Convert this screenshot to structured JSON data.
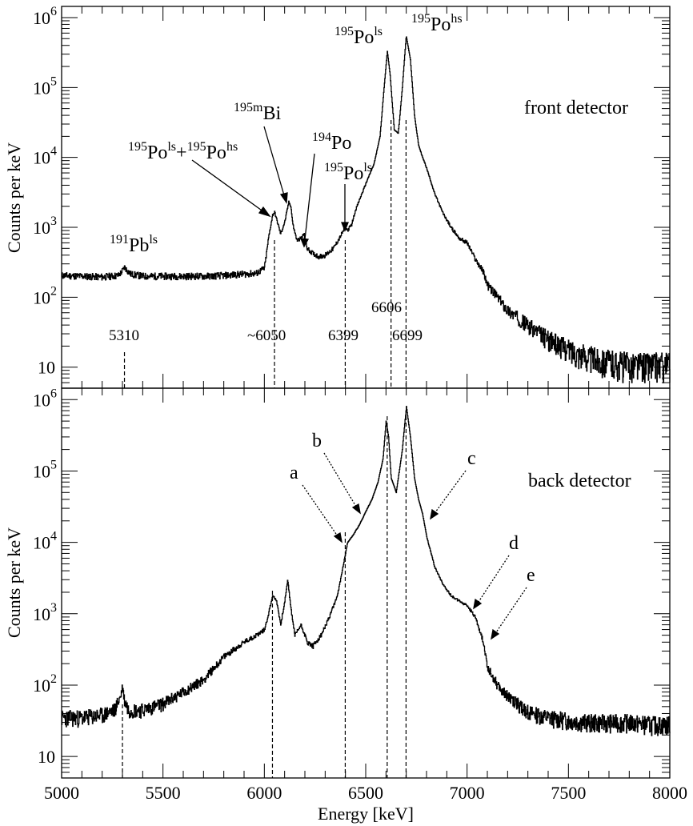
{
  "chart_data": [
    {
      "type": "line",
      "panel": "top",
      "annotation": "front detector",
      "xlabel": "",
      "ylabel": "Counts per keV",
      "xlim": [
        5000,
        8000
      ],
      "ylim": [
        5,
        1000000
      ],
      "yscale": "log",
      "grid": false,
      "ytick_labels": [
        {
          "value": 10,
          "label": "10",
          "exp": ""
        },
        {
          "value": 100,
          "label": "10",
          "exp": "2"
        },
        {
          "value": 1000,
          "label": "10",
          "exp": "3"
        },
        {
          "value": 10000,
          "label": "10",
          "exp": "4"
        },
        {
          "value": 100000,
          "label": "10",
          "exp": "5"
        },
        {
          "value": 1000000,
          "label": "10",
          "exp": "6"
        }
      ],
      "series": [
        {
          "x": [
            5000,
            5100,
            5200,
            5280,
            5300,
            5310,
            5320,
            5340,
            5400,
            5500,
            5600,
            5700,
            5800,
            5900,
            5960,
            6000,
            6020,
            6040,
            6050,
            6060,
            6080,
            6100,
            6120,
            6130,
            6140,
            6160,
            6180,
            6195,
            6210,
            6240,
            6270,
            6300,
            6340,
            6370,
            6385,
            6399,
            6410,
            6430,
            6450,
            6480,
            6510,
            6540,
            6570,
            6590,
            6606,
            6620,
            6640,
            6660,
            6680,
            6699,
            6720,
            6740,
            6760,
            6780,
            6800,
            6840,
            6880,
            6920,
            6960,
            7000,
            7040,
            7080,
            7100,
            7150,
            7200,
            7300,
            7400,
            7500,
            7600,
            7700,
            7800,
            7900,
            8000
          ],
          "y": [
            205,
            200,
            195,
            205,
            240,
            270,
            245,
            215,
            200,
            200,
            200,
            200,
            205,
            215,
            220,
            260,
            700,
            1500,
            1650,
            1300,
            800,
            1200,
            2300,
            2000,
            1100,
            650,
            700,
            800,
            500,
            420,
            380,
            400,
            500,
            700,
            850,
            1000,
            900,
            1100,
            1800,
            3000,
            5000,
            8000,
            20000,
            100000,
            330000,
            150000,
            25000,
            22000,
            100000,
            550000,
            250000,
            40000,
            15000,
            10000,
            7000,
            3000,
            1600,
            1000,
            700,
            600,
            350,
            230,
            150,
            100,
            65,
            40,
            25,
            18,
            14,
            12,
            11,
            11,
            11
          ]
        }
      ],
      "labels": [
        {
          "text": "Pb",
          "pre": "191",
          "post": "ls"
        },
        {
          "text": "Po",
          "pre": "195",
          "post": "ls",
          "text2": "Po",
          "pre2": "195",
          "post2": "hs"
        },
        {
          "text": "Bi",
          "pre": "195m",
          "post": ""
        },
        {
          "text": "Po",
          "pre": "194",
          "post": ""
        },
        {
          "text": "Po",
          "pre": "195",
          "post": "ls"
        },
        {
          "text": "Po",
          "pre": "195",
          "post": "ls"
        },
        {
          "text": "Po",
          "pre": "195",
          "post": "hs"
        }
      ],
      "energy_markers": [
        "5310",
        "~6050",
        "6399",
        "6606",
        "6699"
      ]
    },
    {
      "type": "line",
      "panel": "bottom",
      "annotation": "back detector",
      "xlabel": "Energy [keV]",
      "ylabel": "Counts per keV",
      "xlim": [
        5000,
        8000
      ],
      "ylim": [
        5,
        1000000
      ],
      "yscale": "log",
      "grid": false,
      "xtick_labels": [
        "5000",
        "5500",
        "6000",
        "6500",
        "7000",
        "7500",
        "8000"
      ],
      "ytick_labels": [
        {
          "value": 10,
          "label": "10",
          "exp": ""
        },
        {
          "value": 100,
          "label": "10",
          "exp": "2"
        },
        {
          "value": 1000,
          "label": "10",
          "exp": "3"
        },
        {
          "value": 10000,
          "label": "10",
          "exp": "4"
        },
        {
          "value": 100000,
          "label": "10",
          "exp": "5"
        },
        {
          "value": 1000000,
          "label": "10",
          "exp": "6"
        }
      ],
      "series": [
        {
          "x": [
            5000,
            5100,
            5200,
            5260,
            5290,
            5300,
            5310,
            5330,
            5400,
            5500,
            5600,
            5700,
            5800,
            5900,
            5960,
            6000,
            6020,
            6040,
            6060,
            6080,
            6100,
            6115,
            6130,
            6150,
            6180,
            6195,
            6210,
            6240,
            6280,
            6320,
            6360,
            6390,
            6410,
            6440,
            6470,
            6500,
            6530,
            6560,
            6585,
            6600,
            6612,
            6625,
            6650,
            6680,
            6700,
            6720,
            6740,
            6760,
            6780,
            6800,
            6840,
            6880,
            6920,
            6960,
            7000,
            7040,
            7080,
            7100,
            7150,
            7200,
            7300,
            7400,
            7500,
            7600,
            7700,
            7800,
            7900,
            8000
          ],
          "y": [
            35,
            35,
            38,
            45,
            70,
            95,
            60,
            45,
            45,
            55,
            80,
            120,
            250,
            400,
            500,
            600,
            1000,
            1800,
            1500,
            700,
            1500,
            3000,
            1200,
            500,
            700,
            550,
            400,
            350,
            500,
            900,
            1800,
            5000,
            10000,
            13000,
            18000,
            27000,
            40000,
            70000,
            150000,
            500000,
            300000,
            80000,
            50000,
            200000,
            800000,
            300000,
            80000,
            40000,
            25000,
            12000,
            4500,
            2600,
            1800,
            1500,
            1300,
            900,
            400,
            180,
            100,
            70,
            42,
            35,
            32,
            30,
            30,
            30,
            28,
            28
          ]
        }
      ],
      "arrow_labels": [
        "a",
        "b",
        "c",
        "d",
        "e"
      ]
    }
  ]
}
